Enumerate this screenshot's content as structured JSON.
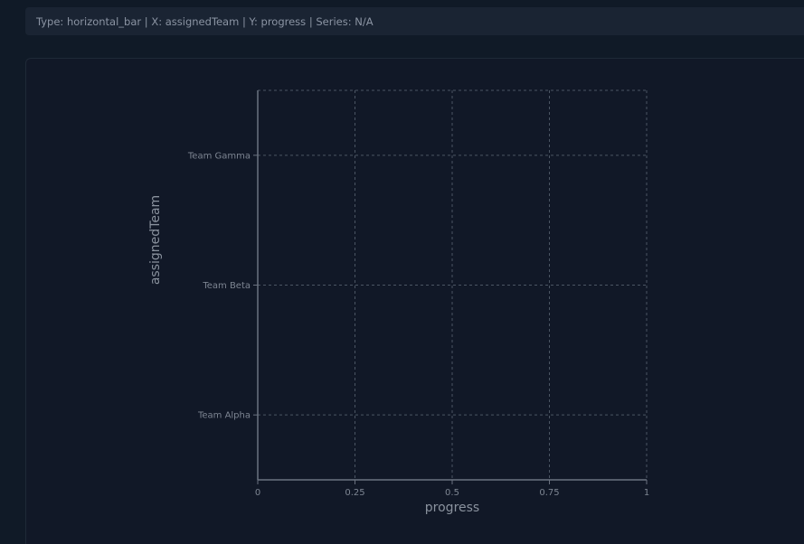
{
  "header": {
    "info_text": "Type: horizontal_bar | X: assignedTeam | Y: progress | Series: N/A"
  },
  "colors": {
    "background": "#101a27",
    "card": "#111827",
    "grid": "#4b5563",
    "axis": "#6b7280"
  },
  "chart_data": {
    "type": "bar",
    "orientation": "horizontal",
    "categories": [
      "Team Alpha",
      "Team Beta",
      "Team Gamma"
    ],
    "values": [
      0,
      0,
      0
    ],
    "xlabel": "progress",
    "ylabel": "assignedTeam",
    "xlim": [
      0,
      1
    ],
    "x_ticks": [
      "0",
      "0.25",
      "0.5",
      "0.75",
      "1"
    ],
    "grid": true,
    "legend": "none"
  }
}
